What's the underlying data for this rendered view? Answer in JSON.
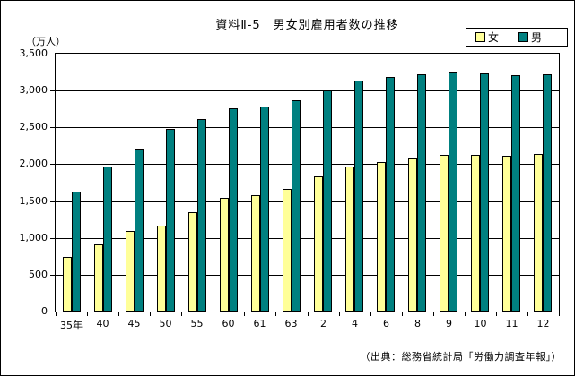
{
  "chart_data": {
    "type": "bar",
    "title": "資料Ⅱ-5　男女別雇用者数の推移",
    "y_unit": "（万人）",
    "source": "（出典：総務省統計局「労働力調査年報」）",
    "categories": [
      "35年",
      "40",
      "45",
      "50",
      "55",
      "60",
      "61",
      "63",
      "2",
      "4",
      "6",
      "8",
      "9",
      "10",
      "11",
      "12"
    ],
    "series": [
      {
        "name": "女",
        "color": "#ffff99",
        "values": [
          738,
          913,
          1096,
          1167,
          1354,
          1548,
          1584,
          1670,
          1834,
          1974,
          2034,
          2084,
          2127,
          2124,
          2116,
          2140
        ]
      },
      {
        "name": "男",
        "color": "#008080",
        "values": [
          1633,
          1963,
          2210,
          2479,
          2617,
          2764,
          2788,
          2869,
          3001,
          3139,
          3188,
          3224,
          3253,
          3232,
          3206,
          3216
        ]
      }
    ],
    "ylim": [
      0,
      3500
    ],
    "ytick_step": 500,
    "grid": true,
    "legend_position": "top-right",
    "axis_color": "#000000",
    "background_color": "#ffffff"
  }
}
